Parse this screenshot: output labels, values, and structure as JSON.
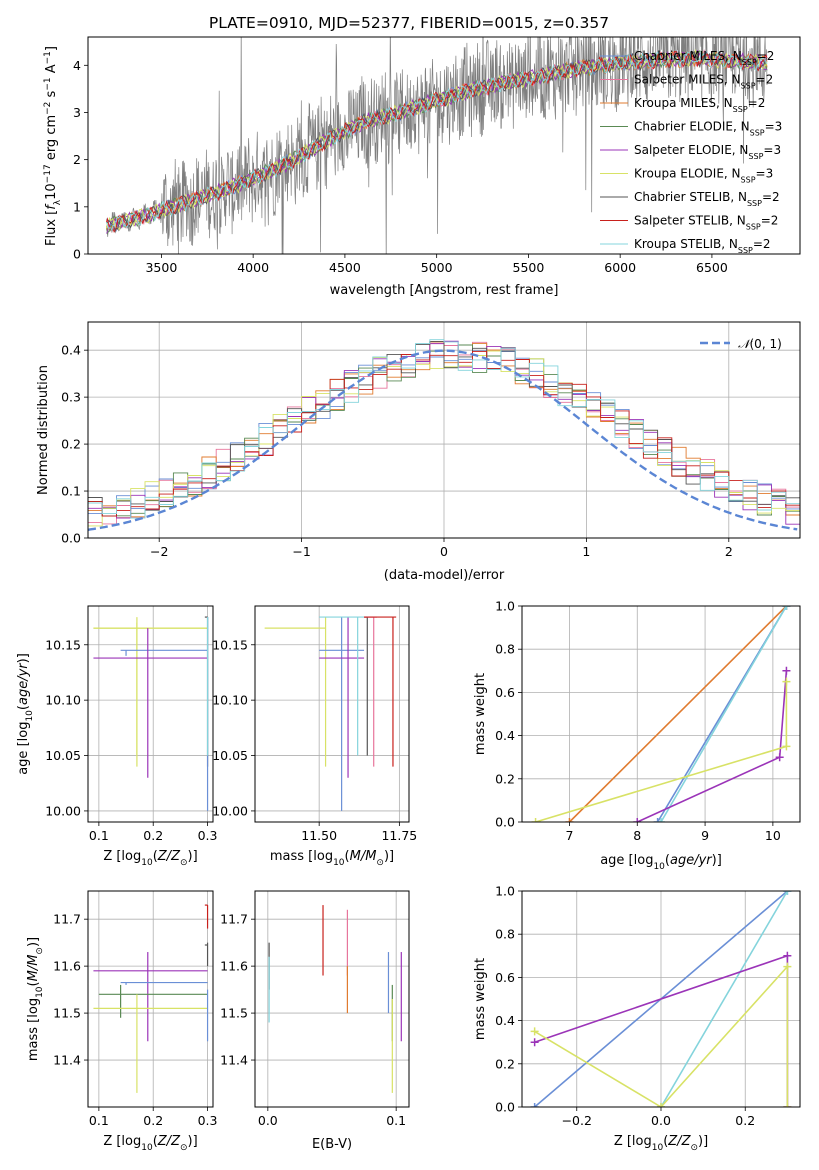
{
  "title": "PLATE=0910, MJD=52377, FIBERID=0015, z=0.357",
  "colors": {
    "Chabrier MILES": "#6a8fd6",
    "Salpeter MILES": "#e7759c",
    "Kroupa MILES": "#e07b2f",
    "Chabrier ELODIE": "#5a8a54",
    "Salpeter ELODIE": "#9b34b8",
    "Kroupa ELODIE": "#d8e266",
    "Chabrier STELIB": "#555555",
    "Salpeter STELIB": "#c8201c",
    "Kroupa STELIB": "#84d4dc",
    "data": "#7f7f7f",
    "normal": "#5b86d4"
  },
  "chart_data": [
    {
      "id": "spectrum",
      "type": "line",
      "title": "PLATE=0910, MJD=52377, FIBERID=0015, z=0.357",
      "xlabel": "wavelength [Angstrom, rest frame]",
      "ylabel_parts": [
        "Flux [",
        "f",
        "λ",
        "10",
        "−17",
        " erg cm",
        "−2",
        " s",
        "−1",
        " A",
        "−1",
        "]"
      ],
      "xlim": [
        3100,
        6980
      ],
      "ylim": [
        0,
        4.6
      ],
      "xticks": [
        3500,
        4000,
        4500,
        5000,
        5500,
        6000,
        6500
      ],
      "yticks": [
        0,
        1,
        2,
        3,
        4
      ],
      "legend_position": "upper right",
      "legend": [
        {
          "name": "Chabrier MILES",
          "nssp": "2"
        },
        {
          "name": "Salpeter MILES",
          "nssp": "2"
        },
        {
          "name": "Kroupa MILES",
          "nssp": "2"
        },
        {
          "name": "Chabrier ELODIE",
          "nssp": "3"
        },
        {
          "name": "Salpeter ELODIE",
          "nssp": "3"
        },
        {
          "name": "Kroupa ELODIE",
          "nssp": "3"
        },
        {
          "name": "Chabrier STELIB",
          "nssp": "2"
        },
        {
          "name": "Salpeter STELIB",
          "nssp": "2"
        },
        {
          "name": "Kroupa STELIB",
          "nssp": "2"
        }
      ],
      "model_continuum": [
        [
          3200,
          0.6
        ],
        [
          3400,
          0.8
        ],
        [
          3600,
          1.05
        ],
        [
          3800,
          1.3
        ],
        [
          4000,
          1.6
        ],
        [
          4200,
          1.95
        ],
        [
          4400,
          2.4
        ],
        [
          4600,
          2.8
        ],
        [
          4800,
          3.0
        ],
        [
          5000,
          3.25
        ],
        [
          5200,
          3.5
        ],
        [
          5400,
          3.65
        ],
        [
          5600,
          3.8
        ],
        [
          5800,
          3.95
        ],
        [
          6000,
          4.05
        ],
        [
          6200,
          4.1
        ],
        [
          6400,
          4.15
        ],
        [
          6600,
          4.1
        ],
        [
          6800,
          4.05
        ]
      ]
    },
    {
      "id": "residuals",
      "type": "histogram",
      "xlabel": "(data-model)/error",
      "ylabel": "Normed distribution",
      "xlim": [
        -2.5,
        2.5
      ],
      "ylim": [
        0,
        0.46
      ],
      "xticks": [
        -2,
        -1,
        0,
        1,
        2
      ],
      "yticks": [
        0.0,
        0.1,
        0.2,
        0.3,
        0.4
      ],
      "grid": true,
      "legend_position": "upper right",
      "reference_curve": {
        "name": "N(0,1)",
        "mean": 0,
        "sigma": 1
      },
      "bin_width": 0.1,
      "peak_values": [
        0.37,
        0.38,
        0.36,
        0.44,
        0.4,
        0.35
      ]
    },
    {
      "id": "age_vs_Z",
      "type": "scatter",
      "xlabel": "Z [log10(Z/Z⊙)]",
      "ylabel": "age  [log10(age/yr)]",
      "xlim": [
        0.08,
        0.31
      ],
      "ylim": [
        9.99,
        10.185
      ],
      "xticks": [
        0.1,
        0.2,
        0.3
      ],
      "yticks": [
        10.0,
        10.05,
        10.1,
        10.15
      ],
      "grid": true,
      "errorbars": [
        {
          "series": "Kroupa ELODIE",
          "x": 0.17,
          "y": 10.165,
          "xlo": 0.09,
          "xhi": 0.3,
          "ylo": 10.04,
          "yhi": 10.175
        },
        {
          "series": "Kroupa ELODIE",
          "x": 0.17,
          "y": 10.165,
          "xlo": 0.09,
          "xhi": 0.3,
          "ylo": 10.05,
          "yhi": 10.17
        },
        {
          "series": "Chabrier MILES",
          "x": 0.15,
          "y": 10.145,
          "xlo": 0.14,
          "xhi": 0.3,
          "ylo": 10.14,
          "yhi": 10.145
        },
        {
          "series": "Salpeter ELODIE",
          "x": 0.19,
          "y": 10.138,
          "xlo": 0.09,
          "xhi": 0.3,
          "ylo": 10.03,
          "yhi": 10.165
        },
        {
          "series": "Chabrier STELIB",
          "x": 0.3,
          "y": 10.175,
          "xlo": 0.295,
          "xhi": 0.3,
          "ylo": 10.04,
          "yhi": 10.175
        },
        {
          "series": "Chabrier MILES",
          "x": 0.3,
          "y": 10.17,
          "xlo": 0.3,
          "xhi": 0.3,
          "ylo": 10.0,
          "yhi": 10.175
        },
        {
          "series": "Kroupa STELIB",
          "x": 0.3,
          "y": 10.17,
          "xlo": 0.3,
          "xhi": 0.3,
          "ylo": 10.05,
          "yhi": 10.175
        }
      ]
    },
    {
      "id": "age_vs_mass",
      "type": "scatter",
      "xlabel": "mass [log10(M/M⊙)]",
      "xlim": [
        11.3,
        11.78
      ],
      "ylim": [
        9.99,
        10.185
      ],
      "xticks": [
        11.5,
        11.75
      ],
      "yticks": [
        10.0,
        10.05,
        10.1,
        10.15
      ],
      "grid": true,
      "errorbars": [
        {
          "series": "Kroupa ELODIE",
          "x": 11.52,
          "y": 10.165,
          "xlo": 11.33,
          "xhi": 11.52,
          "ylo": 10.04,
          "yhi": 10.175
        },
        {
          "series": "Chabrier MILES",
          "x": 11.57,
          "y": 10.145,
          "xlo": 11.5,
          "xhi": 11.64,
          "ylo": 10.0,
          "yhi": 10.175
        },
        {
          "series": "Salpeter ELODIE",
          "x": 11.59,
          "y": 10.138,
          "xlo": 11.5,
          "xhi": 11.64,
          "ylo": 10.03,
          "yhi": 10.175
        },
        {
          "series": "Kroupa STELIB",
          "x": 11.62,
          "y": 10.175,
          "xlo": 11.5,
          "xhi": 11.64,
          "ylo": 10.05,
          "yhi": 10.175
        },
        {
          "series": "Chabrier STELIB",
          "x": 11.65,
          "y": 10.175,
          "xlo": 11.64,
          "xhi": 11.65,
          "ylo": 10.05,
          "yhi": 10.175
        },
        {
          "series": "Salpeter MILES",
          "x": 11.67,
          "y": 10.175,
          "xlo": 11.64,
          "xhi": 11.68,
          "ylo": 10.04,
          "yhi": 10.175
        },
        {
          "series": "Salpeter STELIB",
          "x": 11.73,
          "y": 10.175,
          "xlo": 11.64,
          "xhi": 11.74,
          "ylo": 10.04,
          "yhi": 10.175
        }
      ]
    },
    {
      "id": "weight_vs_age",
      "type": "line",
      "xlabel": "age  [log10(age/yr)]",
      "ylabel": "mass weight",
      "xlim": [
        6.3,
        10.4
      ],
      "ylim": [
        0,
        1
      ],
      "xticks": [
        7,
        8,
        9,
        10
      ],
      "yticks": [
        0.0,
        0.2,
        0.4,
        0.6,
        0.8,
        1.0
      ],
      "grid": true,
      "series": [
        {
          "name": "Kroupa MILES",
          "x": [
            7.0,
            10.2
          ],
          "y": [
            0.0,
            1.0
          ]
        },
        {
          "name": "Chabrier MILES",
          "x": [
            8.3,
            10.2
          ],
          "y": [
            0.0,
            1.0
          ]
        },
        {
          "name": "Kroupa STELIB",
          "x": [
            8.35,
            10.2
          ],
          "y": [
            0.0,
            1.0
          ]
        },
        {
          "name": "Salpeter ELODIE",
          "x": [
            8.0,
            10.1,
            10.2
          ],
          "y": [
            0.0,
            0.3,
            0.7
          ]
        },
        {
          "name": "Kroupa ELODIE",
          "x": [
            6.5,
            10.2,
            10.2
          ],
          "y": [
            0.0,
            0.35,
            0.65
          ]
        }
      ]
    },
    {
      "id": "mass_vs_Z",
      "type": "scatter",
      "xlabel": "Z [log10(Z/Z⊙)]",
      "ylabel": "mass [log10(M/M⊙)]",
      "xlim": [
        0.08,
        0.31
      ],
      "ylim": [
        11.3,
        11.76
      ],
      "xticks": [
        0.1,
        0.2,
        0.3
      ],
      "yticks": [
        11.4,
        11.5,
        11.6,
        11.7
      ],
      "grid": true,
      "errorbars": [
        {
          "series": "Salpeter ELODIE",
          "x": 0.19,
          "y": 11.59,
          "xlo": 0.09,
          "xhi": 0.3,
          "ylo": 11.44,
          "yhi": 11.63
        },
        {
          "series": "Chabrier MILES",
          "x": 0.15,
          "y": 11.565,
          "xlo": 0.14,
          "xhi": 0.3,
          "ylo": 11.56,
          "yhi": 11.565
        },
        {
          "series": "Chabrier ELODIE",
          "x": 0.14,
          "y": 11.54,
          "xlo": 0.1,
          "xhi": 0.3,
          "ylo": 11.49,
          "yhi": 11.56
        },
        {
          "series": "Kroupa ELODIE",
          "x": 0.17,
          "y": 11.51,
          "xlo": 0.09,
          "xhi": 0.3,
          "ylo": 11.33,
          "yhi": 11.54
        },
        {
          "series": "Salpeter STELIB",
          "x": 0.3,
          "y": 11.73,
          "xlo": 0.295,
          "xhi": 0.3,
          "ylo": 11.68,
          "yhi": 11.73
        },
        {
          "series": "Chabrier STELIB",
          "x": 0.3,
          "y": 11.645,
          "xlo": 0.295,
          "xhi": 0.3,
          "ylo": 11.6,
          "yhi": 11.65
        },
        {
          "series": "Chabrier MILES",
          "x": 0.3,
          "y": 11.5,
          "xlo": 0.3,
          "xhi": 0.3,
          "ylo": 11.44,
          "yhi": 11.55
        }
      ]
    },
    {
      "id": "mass_vs_ebv",
      "type": "scatter",
      "xlabel": "E(B-V)",
      "xlim": [
        -0.01,
        0.11
      ],
      "ylim": [
        11.3,
        11.76
      ],
      "xticks": [
        0.0,
        0.1
      ],
      "yticks": [
        11.4,
        11.5,
        11.6,
        11.7
      ],
      "grid": true,
      "errorbars": [
        {
          "series": "Chabrier STELIB",
          "x": 0.001,
          "y": 11.6,
          "ylo": 11.55,
          "yhi": 11.65
        },
        {
          "series": "Kroupa STELIB",
          "x": 0.001,
          "y": 11.55,
          "ylo": 11.48,
          "yhi": 11.62
        },
        {
          "series": "Salpeter STELIB",
          "x": 0.043,
          "y": 11.65,
          "ylo": 11.58,
          "yhi": 11.73
        },
        {
          "series": "Salpeter MILES",
          "x": 0.062,
          "y": 11.65,
          "ylo": 11.58,
          "yhi": 11.72
        },
        {
          "series": "Kroupa MILES",
          "x": 0.062,
          "y": 11.55,
          "ylo": 11.5,
          "yhi": 11.6
        },
        {
          "series": "Chabrier MILES",
          "x": 0.094,
          "y": 11.57,
          "ylo": 11.5,
          "yhi": 11.63
        },
        {
          "series": "Chabrier ELODIE",
          "x": 0.097,
          "y": 11.5,
          "ylo": 11.44,
          "yhi": 11.56
        },
        {
          "series": "Kroupa ELODIE",
          "x": 0.097,
          "y": 11.43,
          "ylo": 11.33,
          "yhi": 11.53
        },
        {
          "series": "Salpeter ELODIE",
          "x": 0.104,
          "y": 11.56,
          "ylo": 11.44,
          "yhi": 11.63
        }
      ]
    },
    {
      "id": "weight_vs_Z",
      "type": "line",
      "xlabel": "Z [log10(Z/Z⊙)]",
      "ylabel": "mass weight",
      "xlim": [
        -0.33,
        0.33
      ],
      "ylim": [
        0,
        1
      ],
      "xticks": [
        -0.2,
        0.0,
        0.2
      ],
      "yticks": [
        0.0,
        0.2,
        0.4,
        0.6,
        0.8,
        1.0
      ],
      "grid": true,
      "series": [
        {
          "name": "Chabrier MILES",
          "x": [
            -0.3,
            0.3
          ],
          "y": [
            0.0,
            1.0
          ]
        },
        {
          "name": "Kroupa STELIB",
          "x": [
            0.0,
            0.3
          ],
          "y": [
            0.0,
            1.0
          ]
        },
        {
          "name": "Salpeter ELODIE",
          "x": [
            -0.3,
            0.3,
            0.3
          ],
          "y": [
            0.3,
            0.7,
            0.0
          ]
        },
        {
          "name": "Kroupa ELODIE",
          "x": [
            -0.3,
            0.0,
            0.3,
            0.3
          ],
          "y": [
            0.35,
            0.0,
            0.65,
            0.0
          ]
        }
      ]
    }
  ]
}
